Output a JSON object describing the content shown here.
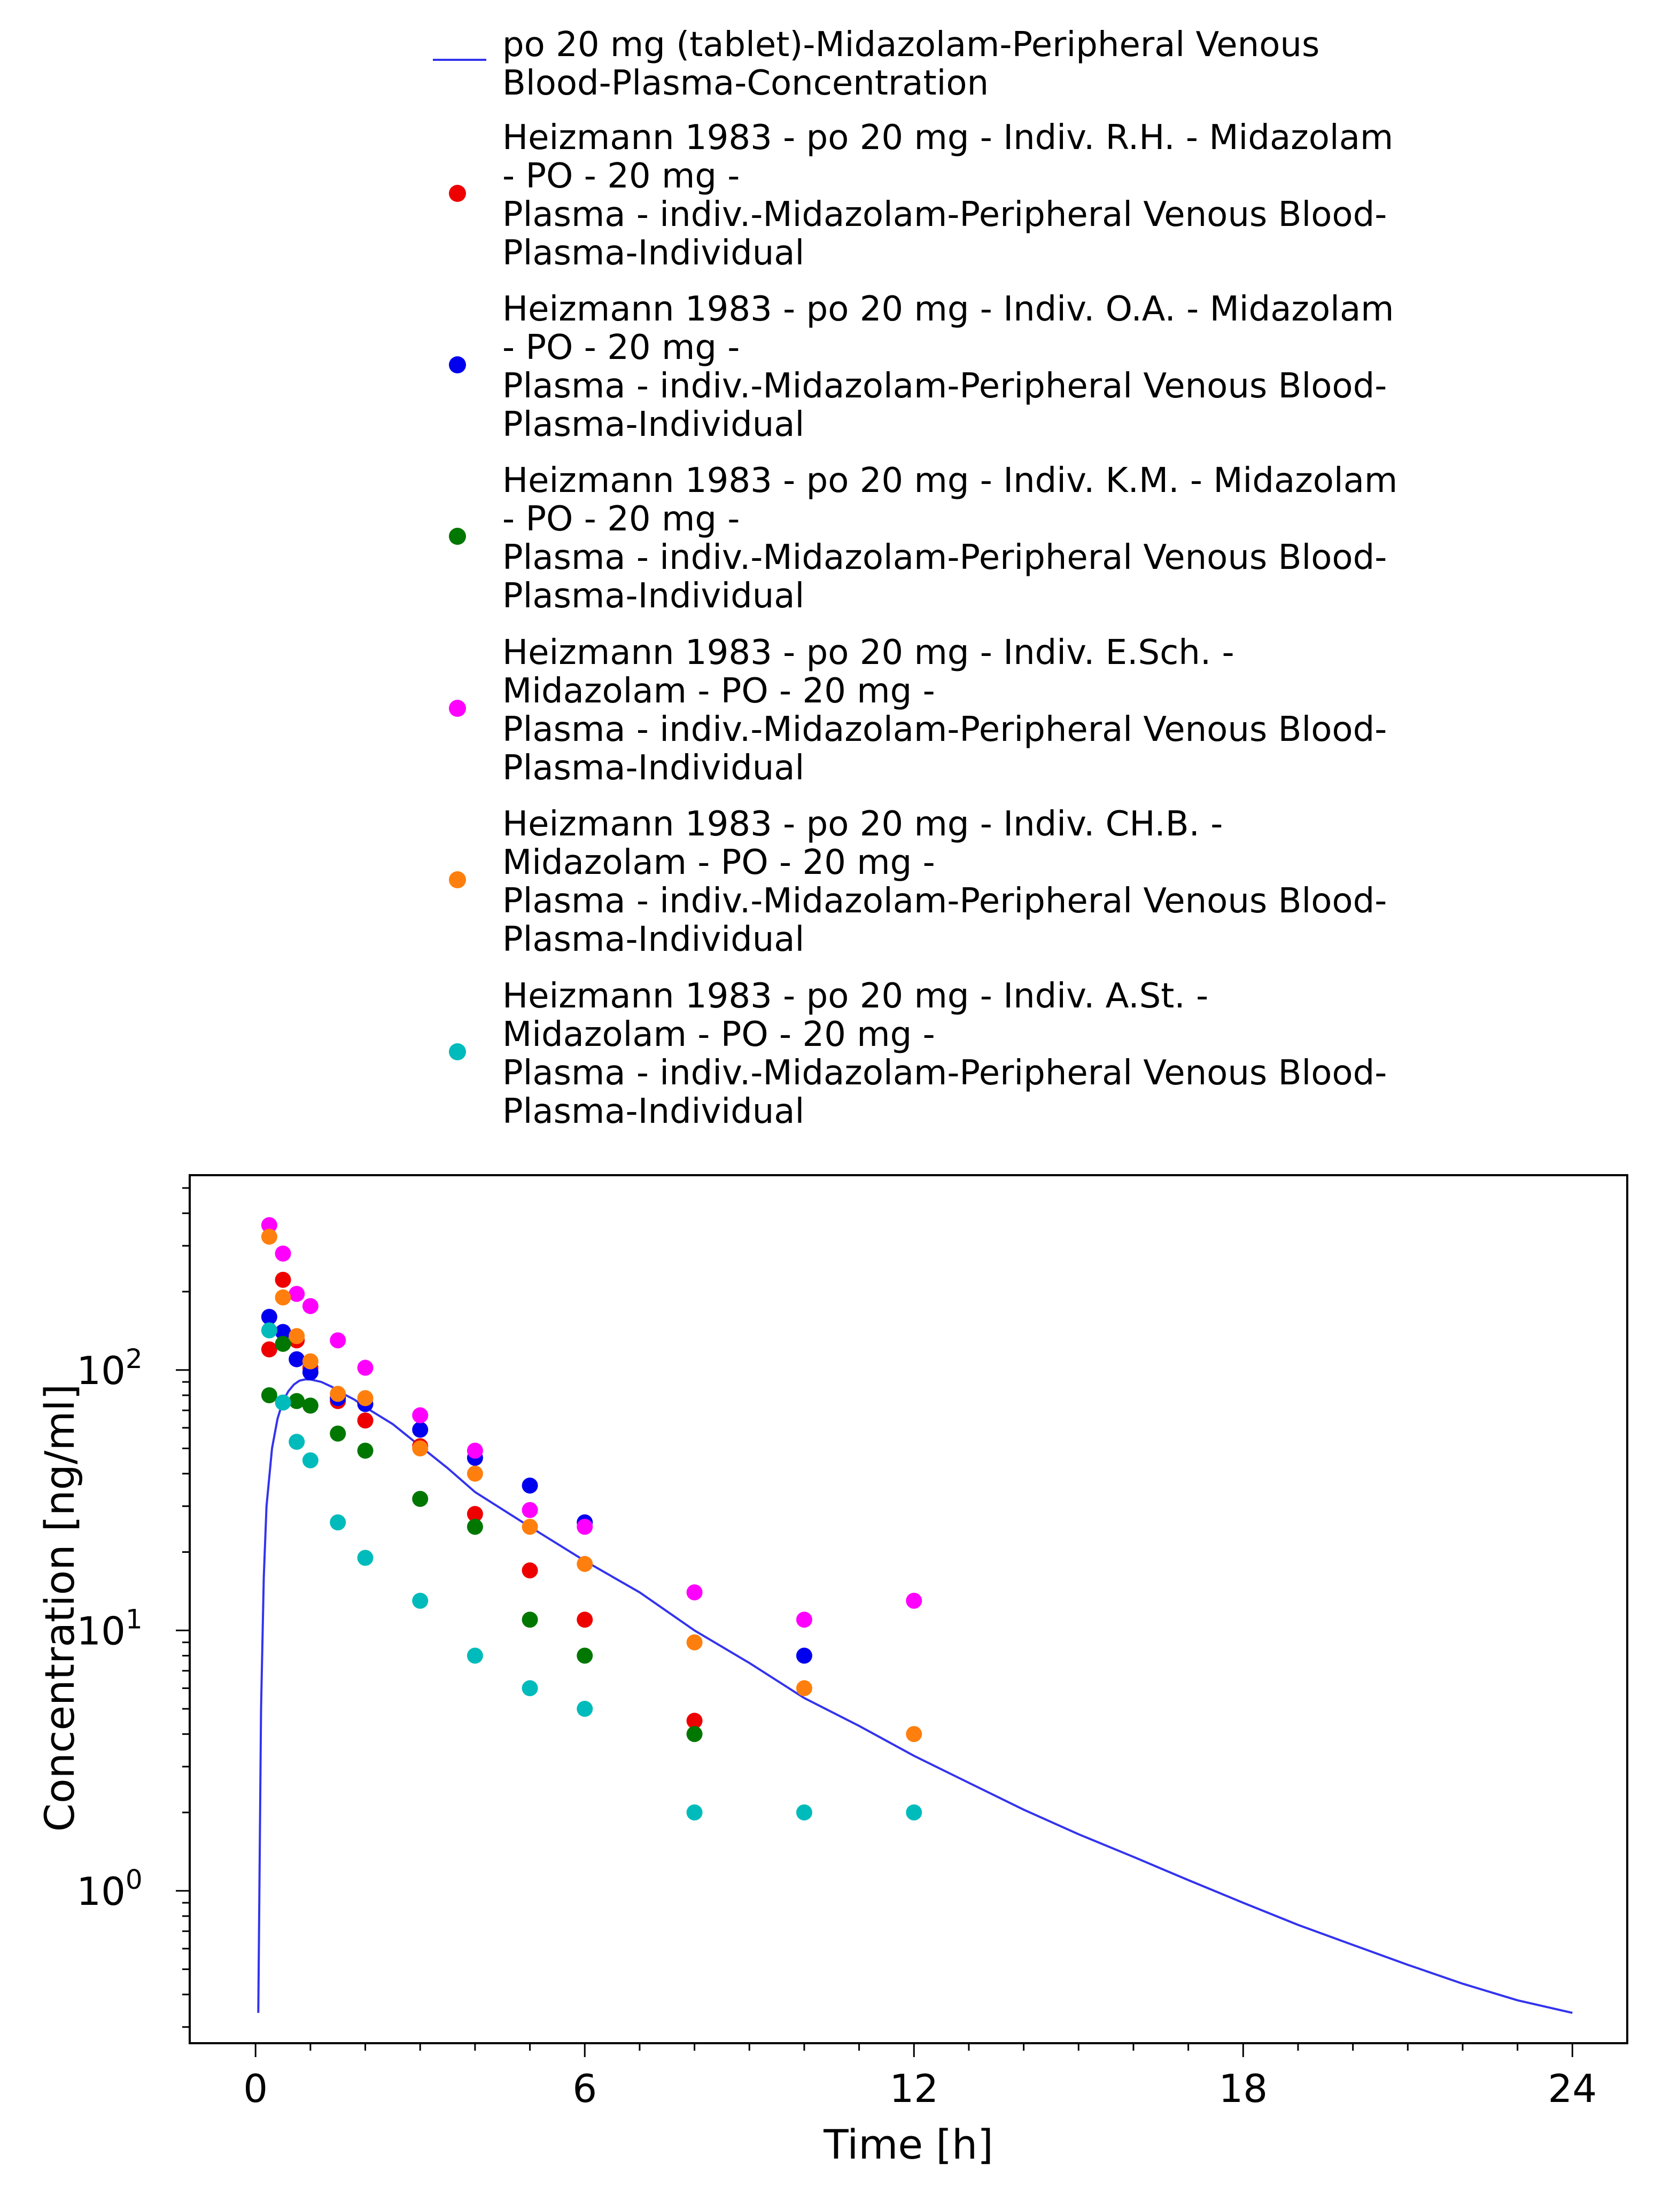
{
  "chart_data": {
    "type": "scatter",
    "xlabel": "Time [h]",
    "ylabel": "Concentration [ng/ml]",
    "x_ticks": [
      "0",
      "6",
      "12",
      "18",
      "24"
    ],
    "y_ticks": [
      {
        "base": "10",
        "exp": "0"
      },
      {
        "base": "10",
        "exp": "1"
      },
      {
        "base": "10",
        "exp": "2"
      }
    ],
    "xlim": [
      -1.2,
      25
    ],
    "ylim": [
      0.26,
      560
    ],
    "yscale": "log",
    "grid": false,
    "legend_position": "top",
    "series": [
      {
        "name": "po 20 mg (tablet)-Midazolam-Peripheral Venous Blood-Plasma-Concentration",
        "kind": "line",
        "color": "#3333ee",
        "x": [
          0.05,
          0.1,
          0.15,
          0.2,
          0.3,
          0.4,
          0.5,
          0.6,
          0.7,
          0.8,
          0.9,
          1.0,
          1.2,
          1.4,
          1.6,
          1.8,
          2,
          2.5,
          3,
          3.5,
          4,
          5,
          6,
          7,
          8,
          9,
          10,
          11,
          12,
          13,
          14,
          15,
          16,
          17,
          18,
          19,
          20,
          21,
          22,
          23,
          24
        ],
        "y": [
          0.34,
          5,
          16,
          30,
          50,
          65,
          76,
          83,
          88,
          91,
          92,
          92,
          90,
          86,
          81,
          77,
          72,
          62,
          51,
          42,
          34,
          25,
          18.5,
          14,
          10,
          7.5,
          5.5,
          4.3,
          3.3,
          2.6,
          2.05,
          1.65,
          1.35,
          1.1,
          0.9,
          0.74,
          0.62,
          0.52,
          0.44,
          0.38,
          0.34
        ]
      },
      {
        "name": "Heizmann 1983 - po 20 mg - Indiv. R.H. - Midazolam - PO - 20 mg - Plasma - indiv.-Midazolam-Peripheral Venous Blood-Plasma-Individual",
        "kind": "points",
        "color": "#ee0000",
        "x": [
          0.25,
          0.5,
          0.75,
          1,
          1.5,
          2,
          3,
          4,
          5,
          6,
          8
        ],
        "y": [
          120,
          222,
          130,
          102,
          76,
          64,
          51,
          28,
          17,
          11,
          4.5
        ]
      },
      {
        "name": "Heizmann 1983 - po 20 mg - Indiv. O.A. - Midazolam - PO - 20 mg - Plasma - indiv.-Midazolam-Peripheral Venous Blood-Plasma-Individual",
        "kind": "points",
        "color": "#0000ee",
        "x": [
          0.25,
          0.5,
          0.75,
          1,
          1.5,
          2,
          3,
          4,
          5,
          6,
          10
        ],
        "y": [
          160,
          140,
          110,
          98,
          78,
          74,
          59,
          46,
          36,
          26,
          8
        ]
      },
      {
        "name": "Heizmann 1983 - po 20 mg - Indiv. K.M. - Midazolam - PO - 20 mg - Plasma - indiv.-Midazolam-Peripheral Venous Blood-Plasma-Individual",
        "kind": "points",
        "color": "#007700",
        "x": [
          0.25,
          0.5,
          0.75,
          1,
          1.5,
          2,
          3,
          4,
          5,
          6,
          8
        ],
        "y": [
          80,
          126,
          76,
          73,
          57,
          49,
          32,
          25,
          11,
          8,
          4
        ]
      },
      {
        "name": "Heizmann 1983 - po 20 mg - Indiv. E.Sch. - Midazolam - PO - 20 mg - Plasma - indiv.-Midazolam-Peripheral Venous Blood-Plasma-Individual",
        "kind": "points",
        "color": "#ff00ff",
        "x": [
          0.25,
          0.5,
          0.75,
          1,
          1.5,
          2,
          3,
          4,
          5,
          6,
          8,
          10,
          12
        ],
        "y": [
          360,
          280,
          196,
          176,
          130,
          102,
          67,
          49,
          29,
          25,
          14,
          11,
          13
        ]
      },
      {
        "name": "Heizmann 1983 - po 20 mg - Indiv. CH.B. - Midazolam - PO - 20 mg - Plasma - indiv.-Midazolam-Peripheral Venous Blood-Plasma-Individual",
        "kind": "points",
        "color": "#ff7f0e",
        "x": [
          0.25,
          0.5,
          0.75,
          1,
          1.5,
          2,
          3,
          4,
          5,
          6,
          8,
          10,
          12
        ],
        "y": [
          325,
          190,
          135,
          108,
          81,
          78,
          50,
          40,
          25,
          18,
          9,
          6,
          4
        ]
      },
      {
        "name": "Heizmann 1983 - po 20 mg - Indiv. A.St. - Midazolam - PO - 20 mg - Plasma - indiv.-Midazolam-Peripheral Venous Blood-Plasma-Individual",
        "kind": "points",
        "color": "#00bbbb",
        "x": [
          0.25,
          0.5,
          0.75,
          1,
          1.5,
          2,
          3,
          4,
          5,
          6,
          8,
          10,
          12
        ],
        "y": [
          142,
          75,
          53,
          45,
          26,
          19,
          13,
          8,
          6,
          5,
          2,
          2,
          2
        ]
      }
    ]
  },
  "legend": {
    "items": [
      {
        "text": "po 20 mg (tablet)-Midazolam-Peripheral Venous\nBlood-Plasma-Concentration"
      },
      {
        "text": "Heizmann 1983 - po 20 mg - Indiv. R.H. - Midazolam\n- PO - 20 mg -\nPlasma - indiv.-Midazolam-Peripheral Venous Blood-\nPlasma-Individual"
      },
      {
        "text": "Heizmann 1983 - po 20 mg - Indiv. O.A. - Midazolam\n- PO - 20 mg -\nPlasma - indiv.-Midazolam-Peripheral Venous Blood-\nPlasma-Individual"
      },
      {
        "text": "Heizmann 1983 - po 20 mg - Indiv. K.M. - Midazolam\n- PO - 20 mg -\nPlasma - indiv.-Midazolam-Peripheral Venous Blood-\nPlasma-Individual"
      },
      {
        "text": "Heizmann 1983 - po 20 mg - Indiv. E.Sch. -\nMidazolam - PO - 20 mg -\nPlasma - indiv.-Midazolam-Peripheral Venous Blood-\nPlasma-Individual"
      },
      {
        "text": "Heizmann 1983 - po 20 mg - Indiv. CH.B. -\nMidazolam - PO - 20 mg -\nPlasma - indiv.-Midazolam-Peripheral Venous Blood-\nPlasma-Individual"
      },
      {
        "text": "Heizmann 1983 - po 20 mg - Indiv. A.St. -\nMidazolam - PO - 20 mg -\nPlasma - indiv.-Midazolam-Peripheral Venous Blood-\nPlasma-Individual"
      }
    ]
  }
}
